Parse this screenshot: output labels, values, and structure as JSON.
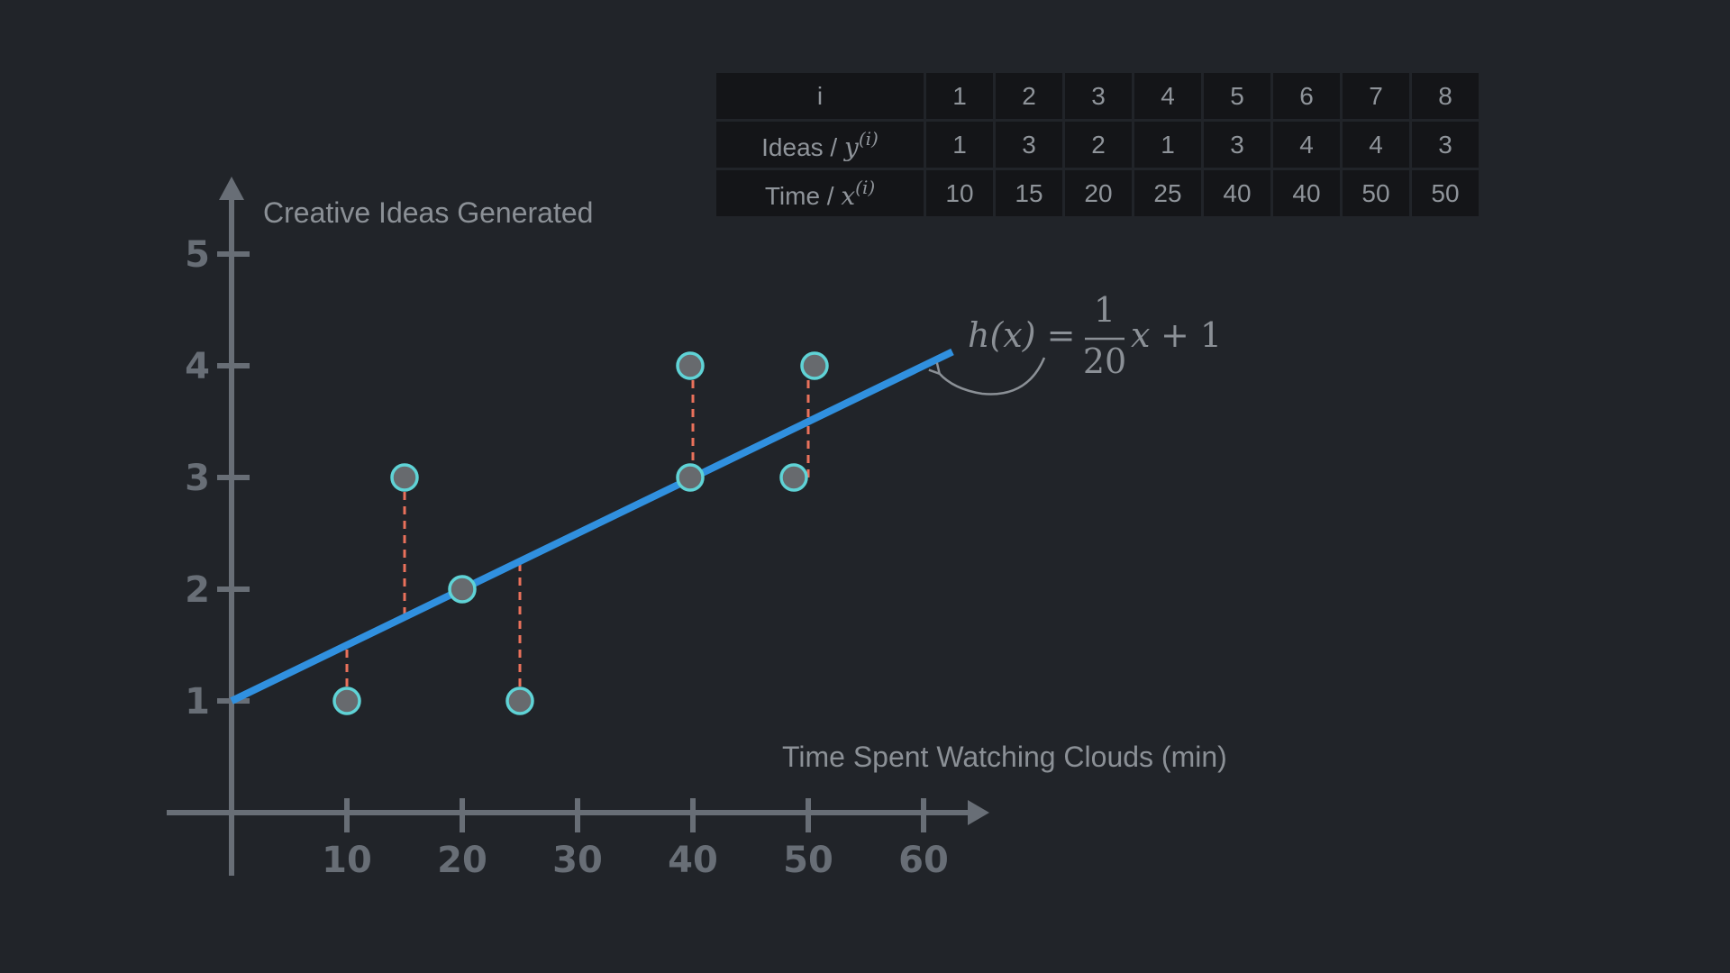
{
  "chart_data": {
    "type": "scatter",
    "ylabel": "Creative Ideas Generated",
    "xlabel": "Time Spent Watching Clouds (min)",
    "x_ticks": [
      10,
      20,
      30,
      40,
      50,
      60
    ],
    "y_ticks": [
      1,
      2,
      3,
      4,
      5
    ],
    "xlim": [
      0,
      66
    ],
    "ylim": [
      0,
      5.5
    ],
    "points": [
      {
        "x": 10,
        "y": 1
      },
      {
        "x": 15,
        "y": 3
      },
      {
        "x": 20,
        "y": 2
      },
      {
        "x": 25,
        "y": 1
      },
      {
        "x": 40,
        "y": 3
      },
      {
        "x": 40,
        "y": 4
      },
      {
        "x": 50,
        "y": 4
      },
      {
        "x": 50,
        "y": 3
      }
    ],
    "fit_line": {
      "slope": 0.05,
      "intercept": 1,
      "x_range": [
        0,
        62.5
      ]
    },
    "residuals": true,
    "colors": {
      "background": "#212429",
      "axis": "#686e76",
      "fit_line": "#3090df",
      "point_fill": "#676a6e",
      "point_stroke": "#5fd3d6",
      "residual": "#e9715b"
    },
    "formula": {
      "lhs": "h(x) =",
      "numerator": "1",
      "denominator": "20",
      "rhs_var": "x",
      "rhs_rest": "+ 1"
    }
  },
  "table": {
    "header_label": "i",
    "indices": [
      "1",
      "2",
      "3",
      "4",
      "5",
      "6",
      "7",
      "8"
    ],
    "ideas_label_prefix": "Ideas / ",
    "ideas_var": "y",
    "ideas_sup": "(i)",
    "ideas_values": [
      "1",
      "3",
      "2",
      "1",
      "3",
      "4",
      "4",
      "3"
    ],
    "time_label_prefix": "Time / ",
    "time_var": "x",
    "time_sup": "(i)",
    "time_values": [
      "10",
      "15",
      "20",
      "25",
      "40",
      "40",
      "50",
      "50"
    ]
  }
}
